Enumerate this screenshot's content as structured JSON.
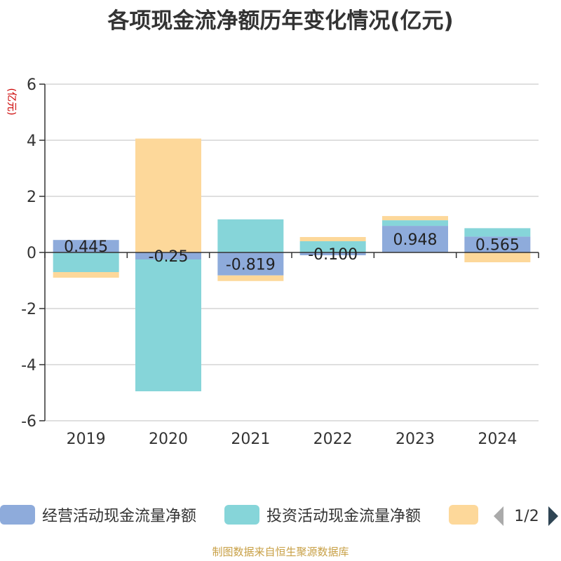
{
  "chart_data": {
    "type": "bar",
    "stacked": true,
    "title": "各项现金流净额历年变化情况(亿元)",
    "ylabel": "(亿元)",
    "xlabel": "",
    "ylim": [
      -6,
      6
    ],
    "yticks": [
      6,
      4,
      2,
      0,
      -2,
      -4,
      -6
    ],
    "grid": true,
    "categories": [
      "2019",
      "2020",
      "2021",
      "2022",
      "2023",
      "2024"
    ],
    "series": [
      {
        "name": "经营活动现金流量净额",
        "color": "#8eabdb",
        "values": [
          0.445,
          -0.25,
          -0.819,
          -0.1,
          0.948,
          0.565
        ],
        "labels": [
          "0.445",
          "-0.25",
          "-0.819",
          "-0.100",
          "0.948",
          "0.565"
        ]
      },
      {
        "name": "投资活动现金流量净额",
        "color": "#86d5d9",
        "values": [
          -0.7,
          -4.7,
          1.18,
          0.4,
          0.2,
          0.3
        ]
      },
      {
        "name": "",
        "color": "#fdd89a",
        "values": [
          -0.2,
          4.06,
          -0.2,
          0.15,
          0.15,
          -0.35
        ]
      }
    ],
    "legend_position": "bottom",
    "legend_page": "1/2"
  },
  "footer": "制图数据来自恒生聚源数据库"
}
